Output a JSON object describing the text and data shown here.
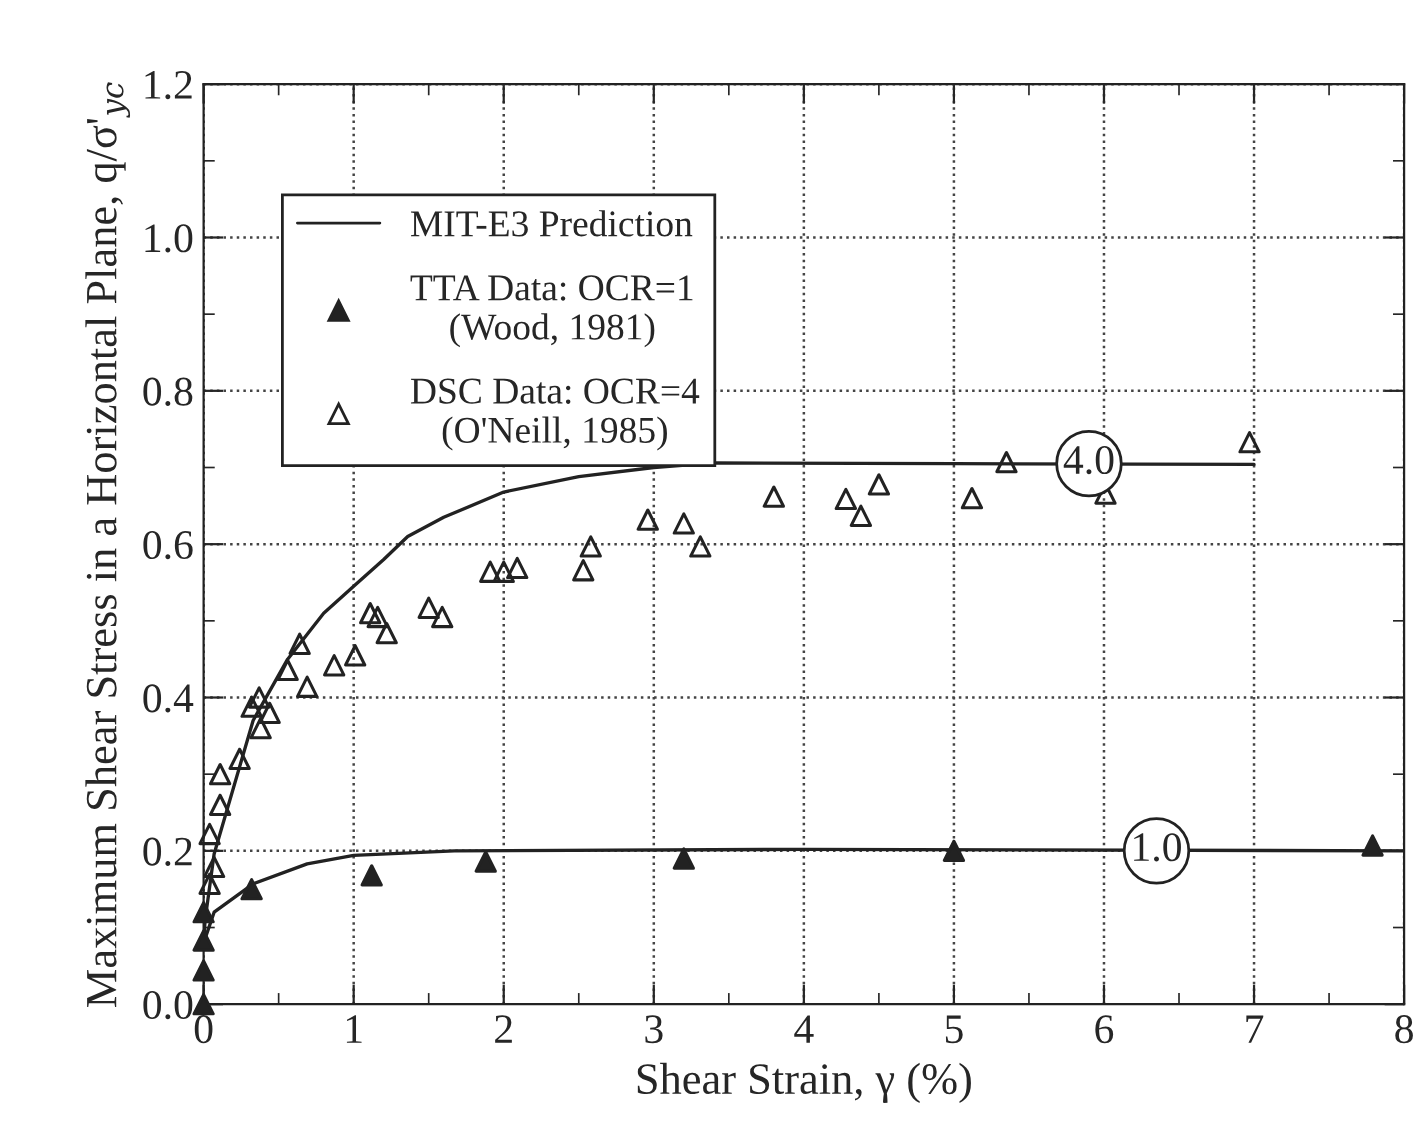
{
  "chart_data": {
    "type": "scatter",
    "xlabel": "Shear Strain, γ (%)",
    "ylabel": "Maximum Shear Stress in a Horizontal Plane, q/σ'$_{yc}$",
    "xlim": [
      0,
      8
    ],
    "ylim": [
      0,
      1.2
    ],
    "xticks": [
      0,
      {
        "value": 0.5,
        "label": null
      },
      1,
      {
        "value": 1.5,
        "label": null
      },
      2,
      {
        "value": 2.5,
        "label": null
      },
      3,
      {
        "value": 3.5,
        "label": null
      },
      4,
      {
        "value": 4.5,
        "label": null
      },
      5,
      {
        "value": 5.5,
        "label": null
      },
      6,
      {
        "value": 6.5,
        "label": null
      },
      7,
      {
        "value": 7.5,
        "label": null
      },
      8
    ],
    "yticks": [
      {
        "value": 0,
        "label": "0.0"
      },
      {
        "value": 0.1,
        "label": null
      },
      0.2,
      {
        "value": 0.3,
        "label": null
      },
      0.4,
      {
        "value": 0.5,
        "label": null
      },
      0.6,
      {
        "value": 0.7,
        "label": null
      },
      0.8,
      {
        "value": 0.9,
        "label": null
      },
      {
        "value": 1.0,
        "label": "1.0"
      },
      {
        "value": 1.1,
        "label": null
      },
      1.2
    ],
    "grid": true,
    "legend": "top left",
    "series": [
      {
        "name": "MIT-E3 Prediction",
        "type": "line",
        "color": "#222222",
        "marker": "none",
        "x": [
          0,
          0.01,
          0.07,
          0.33,
          0.56,
          0.8,
          1.0,
          1.2,
          1.36,
          1.6,
          2.0,
          2.5,
          3.0,
          3.4,
          5.0,
          7.0
        ],
        "values": [
          0.08,
          0.11,
          0.196,
          0.37,
          0.45,
          0.51,
          0.545,
          0.58,
          0.61,
          0.635,
          0.668,
          0.688,
          0.7,
          0.706,
          0.705,
          0.704
        ]
      },
      {
        "type": "line",
        "color": "#222222",
        "marker": "none",
        "x": [
          0,
          0.07,
          0.33,
          0.69,
          1.0,
          1.67,
          4.0,
          8.0
        ],
        "values": [
          0.08,
          0.12,
          0.157,
          0.183,
          0.194,
          0.2,
          0.202,
          0.2
        ]
      },
      {
        "name": "TTA Data: OCR=1\n(Wood, 1981)",
        "marker": "triangle",
        "color": "#222222",
        "x": [
          0,
          0,
          0,
          0,
          0.32,
          1.12,
          1.88,
          3.2,
          5.0,
          7.79
        ],
        "values": [
          0,
          0.044,
          0.083,
          0.12,
          0.15,
          0.168,
          0.186,
          0.19,
          0.2,
          0.207
        ]
      },
      {
        "name": "DSC Data: OCR=4\n(O'Neill, 1985)",
        "marker": "triangle",
        "color": "#222222",
        "x": [
          0.04,
          0.07,
          0.04,
          0.11,
          0.11,
          0.24,
          0.32,
          0.37,
          0.38,
          0.44,
          0.56,
          0.64,
          0.69,
          0.87,
          1.01,
          1.11,
          1.16,
          1.22,
          1.5,
          1.59,
          1.91,
          2.0,
          2.09,
          2.53,
          2.58,
          2.96,
          3.2,
          3.31,
          3.8,
          4.28,
          4.38,
          4.5,
          5.12,
          5.35,
          6.01,
          6.97
        ],
        "values": [
          0.222,
          0.179,
          0.157,
          0.3,
          0.26,
          0.32,
          0.388,
          0.4,
          0.36,
          0.38,
          0.436,
          0.47,
          0.414,
          0.442,
          0.455,
          0.51,
          0.505,
          0.484,
          0.517,
          0.505,
          0.564,
          0.564,
          0.569,
          0.566,
          0.597,
          0.632,
          0.627,
          0.597,
          0.662,
          0.659,
          0.637,
          0.678,
          0.66,
          0.707,
          0.666,
          0.733
        ]
      }
    ],
    "annotations": [
      {
        "text": "4.0",
        "x": 5.9,
        "y": 0.705
      },
      {
        "text": "1.0",
        "x": 6.35,
        "y": 0.2
      }
    ]
  }
}
